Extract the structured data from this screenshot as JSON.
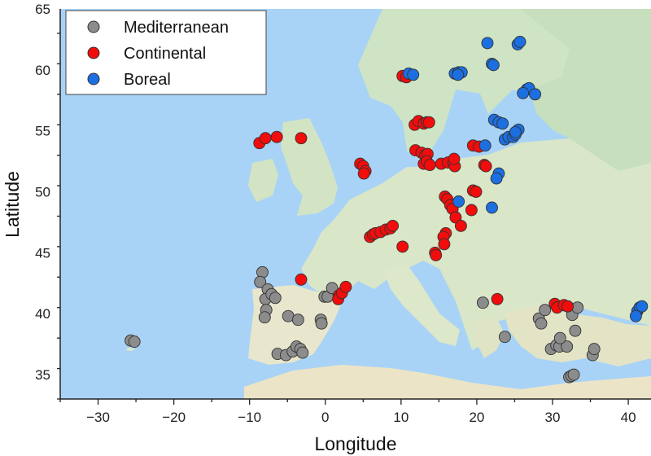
{
  "chart_data": {
    "type": "scatter",
    "xlabel": "Longitude",
    "ylabel": "Latitude",
    "xlim": [
      -35,
      43
    ],
    "ylim": [
      33,
      65
    ],
    "x_ticks": [
      -30,
      -20,
      -10,
      0,
      10,
      20,
      30,
      40
    ],
    "y_ticks": [
      35,
      40,
      45,
      50,
      55,
      60,
      65
    ],
    "legend_position": "top-left",
    "background": "map of Europe",
    "series": [
      {
        "name": "Mediterranean",
        "color": "#8c8c8c",
        "points": [
          [
            -25.7,
            37.8
          ],
          [
            -25.2,
            37.7
          ],
          [
            -8.3,
            43.4
          ],
          [
            -8.6,
            42.6
          ],
          [
            -7.6,
            42.0
          ],
          [
            -7.9,
            41.2
          ],
          [
            -7.1,
            41.6
          ],
          [
            -6.6,
            41.3
          ],
          [
            -7.8,
            40.3
          ],
          [
            -8.0,
            39.7
          ],
          [
            -4.9,
            39.8
          ],
          [
            -3.6,
            39.5
          ],
          [
            -6.3,
            36.7
          ],
          [
            -5.2,
            36.6
          ],
          [
            -4.3,
            36.9
          ],
          [
            -3.8,
            37.3
          ],
          [
            -3.3,
            37.1
          ],
          [
            -3.0,
            36.8
          ],
          [
            -0.6,
            39.5
          ],
          [
            -0.5,
            39.2
          ],
          [
            -0.1,
            41.4
          ],
          [
            0.3,
            41.4
          ],
          [
            0.9,
            42.1
          ],
          [
            20.8,
            40.9
          ],
          [
            23.7,
            38.1
          ],
          [
            28.2,
            39.6
          ],
          [
            28.5,
            39.2
          ],
          [
            29.0,
            40.3
          ],
          [
            29.8,
            37.1
          ],
          [
            30.5,
            37.4
          ],
          [
            30.9,
            37.3
          ],
          [
            31.9,
            37.3
          ],
          [
            32.6,
            39.9
          ],
          [
            33.3,
            40.5
          ],
          [
            33.0,
            38.6
          ],
          [
            32.2,
            34.8
          ],
          [
            32.5,
            34.9
          ],
          [
            32.8,
            35.0
          ],
          [
            35.3,
            36.6
          ],
          [
            35.5,
            37.1
          ],
          [
            31.0,
            38.0
          ]
        ]
      },
      {
        "name": "Continental",
        "color": "#f20c0c",
        "points": [
          [
            -8.7,
            54.0
          ],
          [
            -7.9,
            54.4
          ],
          [
            -6.4,
            54.5
          ],
          [
            -3.2,
            54.4
          ],
          [
            4.6,
            52.3
          ],
          [
            5.0,
            52.1
          ],
          [
            5.3,
            51.7
          ],
          [
            5.1,
            51.5
          ],
          [
            10.2,
            59.5
          ],
          [
            10.7,
            59.4
          ],
          [
            11.8,
            55.5
          ],
          [
            12.3,
            55.8
          ],
          [
            13.0,
            55.6
          ],
          [
            13.4,
            55.7
          ],
          [
            13.7,
            55.7
          ],
          [
            11.9,
            53.4
          ],
          [
            12.7,
            53.2
          ],
          [
            13.2,
            53.0
          ],
          [
            13.5,
            53.1
          ],
          [
            13.0,
            52.3
          ],
          [
            13.4,
            52.5
          ],
          [
            13.8,
            52.2
          ],
          [
            15.3,
            52.3
          ],
          [
            16.2,
            52.4
          ],
          [
            16.9,
            52.4
          ],
          [
            17.1,
            52.1
          ],
          [
            17.0,
            52.7
          ],
          [
            19.5,
            53.8
          ],
          [
            20.3,
            53.7
          ],
          [
            21.0,
            52.2
          ],
          [
            21.2,
            52.1
          ],
          [
            19.5,
            50.1
          ],
          [
            19.9,
            50.0
          ],
          [
            19.3,
            48.5
          ],
          [
            15.8,
            49.6
          ],
          [
            16.1,
            49.4
          ],
          [
            16.5,
            48.9
          ],
          [
            16.8,
            48.6
          ],
          [
            17.2,
            47.9
          ],
          [
            17.9,
            47.2
          ],
          [
            15.9,
            46.6
          ],
          [
            15.6,
            46.3
          ],
          [
            15.7,
            45.7
          ],
          [
            14.5,
            45.0
          ],
          [
            14.6,
            44.8
          ],
          [
            10.2,
            45.5
          ],
          [
            5.9,
            46.3
          ],
          [
            6.3,
            46.5
          ],
          [
            6.6,
            46.6
          ],
          [
            7.3,
            46.7
          ],
          [
            8.0,
            46.9
          ],
          [
            8.6,
            47.0
          ],
          [
            8.9,
            47.2
          ],
          [
            -3.2,
            42.8
          ],
          [
            1.8,
            41.5
          ],
          [
            1.7,
            41.2
          ],
          [
            2.2,
            41.7
          ],
          [
            2.7,
            42.2
          ],
          [
            22.7,
            41.2
          ],
          [
            30.3,
            40.8
          ],
          [
            30.6,
            40.5
          ],
          [
            31.5,
            40.7
          ],
          [
            32.0,
            40.6
          ]
        ]
      },
      {
        "name": "Boreal",
        "color": "#1c6fe0",
        "points": [
          [
            11.0,
            59.7
          ],
          [
            11.6,
            59.6
          ],
          [
            17.1,
            59.7
          ],
          [
            17.6,
            59.8
          ],
          [
            18.0,
            59.8
          ],
          [
            17.5,
            59.6
          ],
          [
            21.4,
            62.2
          ],
          [
            22.0,
            60.5
          ],
          [
            22.2,
            60.4
          ],
          [
            25.4,
            62.1
          ],
          [
            25.7,
            62.3
          ],
          [
            26.6,
            58.4
          ],
          [
            26.9,
            58.5
          ],
          [
            26.1,
            58.1
          ],
          [
            27.7,
            58.0
          ],
          [
            22.3,
            55.9
          ],
          [
            22.9,
            55.7
          ],
          [
            23.4,
            55.6
          ],
          [
            21.1,
            53.8
          ],
          [
            23.7,
            54.3
          ],
          [
            24.2,
            54.5
          ],
          [
            24.8,
            54.5
          ],
          [
            25.1,
            54.7
          ],
          [
            25.5,
            55.1
          ],
          [
            25.1,
            54.9
          ],
          [
            22.9,
            51.5
          ],
          [
            22.6,
            51.1
          ],
          [
            22.0,
            48.7
          ],
          [
            17.6,
            49.2
          ],
          [
            41.2,
            40.2
          ],
          [
            41.5,
            40.5
          ],
          [
            41.8,
            40.6
          ],
          [
            41.0,
            39.8
          ]
        ]
      }
    ]
  }
}
